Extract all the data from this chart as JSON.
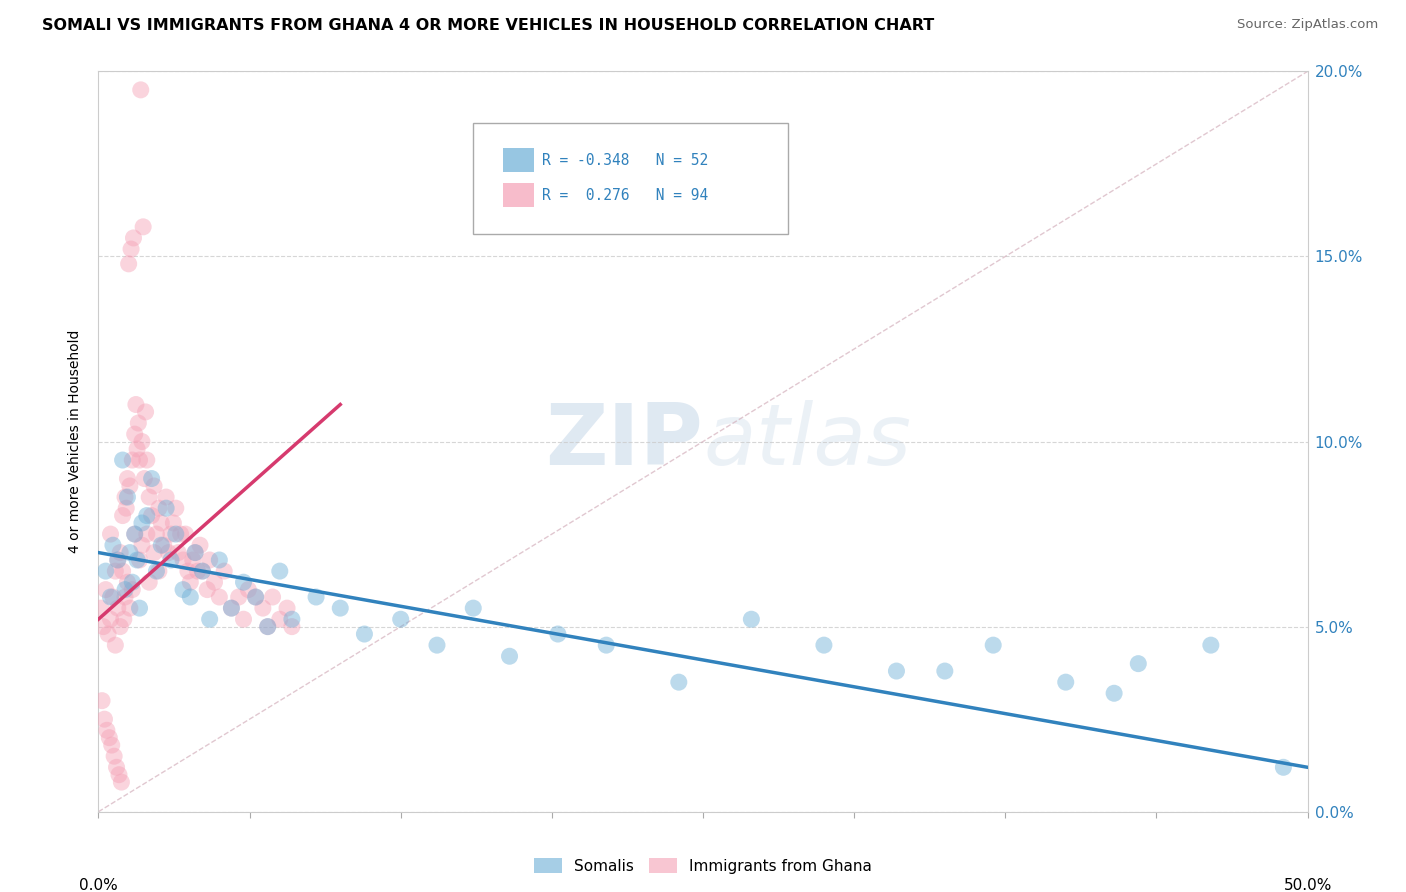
{
  "title": "SOMALI VS IMMIGRANTS FROM GHANA 4 OR MORE VEHICLES IN HOUSEHOLD CORRELATION CHART",
  "source": "Source: ZipAtlas.com",
  "ylabel": "4 or more Vehicles in Household",
  "legend_label1": "Somalis",
  "legend_label2": "Immigrants from Ghana",
  "r1": -0.348,
  "n1": 52,
  "r2": 0.276,
  "n2": 94,
  "color_blue": "#6baed6",
  "color_pink": "#f4a0b5",
  "color_blue_line": "#3182bd",
  "color_pink_line": "#d63a6e",
  "color_diag": "#d0a0b0",
  "xmin": 0.0,
  "xmax": 50.0,
  "ymin": 0.0,
  "ymax": 20.0,
  "ytick_values": [
    0.0,
    5.0,
    10.0,
    15.0,
    20.0
  ],
  "xtick_values": [
    0.0,
    6.25,
    12.5,
    18.75,
    25.0,
    31.25,
    37.5,
    43.75,
    50.0
  ],
  "blue_scatter_x": [
    0.3,
    0.5,
    0.6,
    0.8,
    1.0,
    1.1,
    1.2,
    1.3,
    1.4,
    1.5,
    1.6,
    1.7,
    1.8,
    2.0,
    2.2,
    2.4,
    2.6,
    2.8,
    3.0,
    3.2,
    3.5,
    3.8,
    4.0,
    4.3,
    4.6,
    5.0,
    5.5,
    6.0,
    6.5,
    7.0,
    7.5,
    8.0,
    9.0,
    10.0,
    11.0,
    12.5,
    14.0,
    15.5,
    17.0,
    19.0,
    21.0,
    24.0,
    27.0,
    30.0,
    33.0,
    37.0,
    40.0,
    43.0,
    46.0,
    49.0,
    35.0,
    42.0
  ],
  "blue_scatter_y": [
    6.5,
    5.8,
    7.2,
    6.8,
    9.5,
    6.0,
    8.5,
    7.0,
    6.2,
    7.5,
    6.8,
    5.5,
    7.8,
    8.0,
    9.0,
    6.5,
    7.2,
    8.2,
    6.8,
    7.5,
    6.0,
    5.8,
    7.0,
    6.5,
    5.2,
    6.8,
    5.5,
    6.2,
    5.8,
    5.0,
    6.5,
    5.2,
    5.8,
    5.5,
    4.8,
    5.2,
    4.5,
    5.5,
    4.2,
    4.8,
    4.5,
    3.5,
    5.2,
    4.5,
    3.8,
    4.5,
    3.5,
    4.0,
    4.5,
    1.2,
    3.8,
    3.2
  ],
  "pink_scatter_x": [
    0.1,
    0.2,
    0.3,
    0.4,
    0.5,
    0.5,
    0.6,
    0.7,
    0.7,
    0.8,
    0.8,
    0.9,
    0.9,
    1.0,
    1.0,
    1.1,
    1.1,
    1.2,
    1.2,
    1.3,
    1.3,
    1.4,
    1.4,
    1.5,
    1.5,
    1.6,
    1.7,
    1.7,
    1.8,
    1.8,
    1.9,
    2.0,
    2.0,
    2.1,
    2.1,
    2.2,
    2.3,
    2.3,
    2.4,
    2.5,
    2.5,
    2.6,
    2.7,
    2.8,
    2.9,
    3.0,
    3.1,
    3.2,
    3.3,
    3.4,
    3.5,
    3.6,
    3.7,
    3.8,
    3.9,
    4.0,
    4.1,
    4.2,
    4.3,
    4.5,
    4.6,
    4.8,
    5.0,
    5.2,
    5.5,
    5.8,
    6.0,
    6.2,
    6.5,
    6.8,
    7.0,
    7.2,
    7.5,
    7.8,
    8.0,
    0.15,
    0.25,
    0.35,
    0.45,
    0.55,
    0.65,
    0.75,
    0.85,
    0.95,
    1.05,
    1.15,
    1.25,
    1.35,
    1.45,
    1.55,
    1.65,
    1.75,
    1.85,
    1.95
  ],
  "pink_scatter_y": [
    5.5,
    5.0,
    6.0,
    4.8,
    7.5,
    5.2,
    5.8,
    6.5,
    4.5,
    6.8,
    5.5,
    7.0,
    5.0,
    8.0,
    6.5,
    8.5,
    5.8,
    9.0,
    6.2,
    8.8,
    5.5,
    9.5,
    6.0,
    10.2,
    7.5,
    9.8,
    9.5,
    6.8,
    10.0,
    7.2,
    9.0,
    9.5,
    7.5,
    8.5,
    6.2,
    8.0,
    8.8,
    7.0,
    7.5,
    8.2,
    6.5,
    7.8,
    7.2,
    8.5,
    7.0,
    7.5,
    7.8,
    8.2,
    7.0,
    7.5,
    6.8,
    7.5,
    6.5,
    6.2,
    6.8,
    7.0,
    6.5,
    7.2,
    6.5,
    6.0,
    6.8,
    6.2,
    5.8,
    6.5,
    5.5,
    5.8,
    5.2,
    6.0,
    5.8,
    5.5,
    5.0,
    5.8,
    5.2,
    5.5,
    5.0,
    3.0,
    2.5,
    2.2,
    2.0,
    1.8,
    1.5,
    1.2,
    1.0,
    0.8,
    5.2,
    8.2,
    14.8,
    15.2,
    15.5,
    11.0,
    10.5,
    19.5,
    15.8,
    10.8
  ],
  "blue_line_x": [
    0.0,
    50.0
  ],
  "blue_line_y": [
    7.0,
    1.2
  ],
  "pink_line_x": [
    0.0,
    10.0
  ],
  "pink_line_y": [
    5.2,
    11.0
  ],
  "diag_line_x": [
    0.0,
    50.0
  ],
  "diag_line_y": [
    0.0,
    20.0
  ],
  "watermark_zip": "ZIP",
  "watermark_atlas": "atlas"
}
